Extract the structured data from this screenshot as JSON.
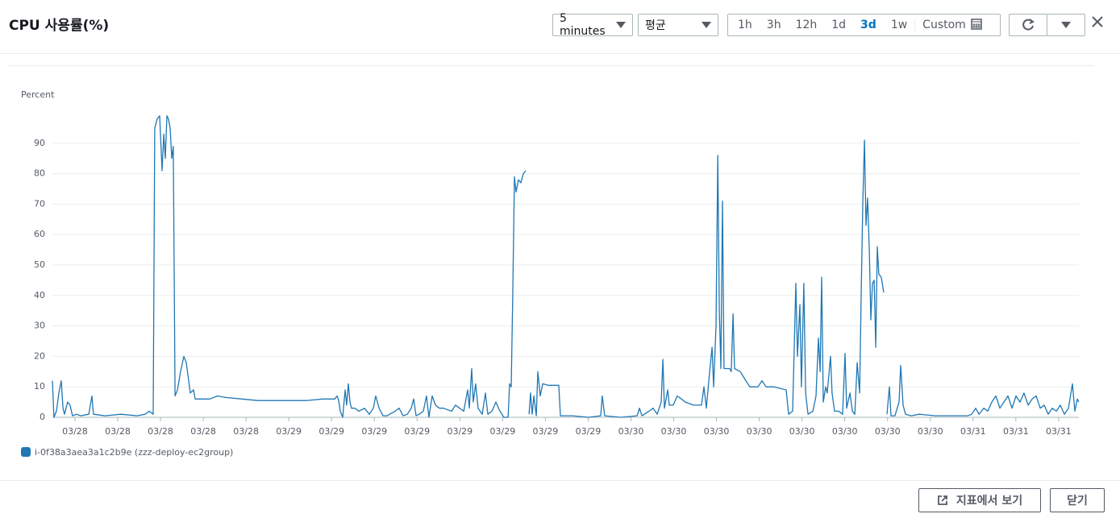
{
  "ui": {
    "title": "CPU 사용률(%)",
    "period": "5 minutes",
    "statistic": "평균",
    "ranges": [
      "1h",
      "3h",
      "12h",
      "1d",
      "3d",
      "1w",
      "Custom"
    ],
    "active_range": 4,
    "footer_buttons": [
      "지표에서 보기",
      "닫기"
    ]
  },
  "chart_data": {
    "type": "line",
    "ylabel": "Percent",
    "ylim": [
      0,
      100
    ],
    "yticks": [
      0,
      10,
      20,
      30,
      40,
      50,
      60,
      70,
      80,
      90
    ],
    "grid": true,
    "xlim": [
      0,
      72
    ],
    "xticks": [
      {
        "value": 1.58,
        "label": "03/28"
      },
      {
        "value": 4.58,
        "label": "03/28"
      },
      {
        "value": 7.58,
        "label": "03/28"
      },
      {
        "value": 10.58,
        "label": "03/28"
      },
      {
        "value": 13.58,
        "label": "03/28"
      },
      {
        "value": 16.58,
        "label": "03/29"
      },
      {
        "value": 19.58,
        "label": "03/29"
      },
      {
        "value": 22.58,
        "label": "03/29"
      },
      {
        "value": 25.58,
        "label": "03/29"
      },
      {
        "value": 28.58,
        "label": "03/29"
      },
      {
        "value": 31.58,
        "label": "03/29"
      },
      {
        "value": 34.58,
        "label": "03/29"
      },
      {
        "value": 37.58,
        "label": "03/29"
      },
      {
        "value": 40.58,
        "label": "03/30"
      },
      {
        "value": 43.58,
        "label": "03/30"
      },
      {
        "value": 46.58,
        "label": "03/30"
      },
      {
        "value": 49.58,
        "label": "03/30"
      },
      {
        "value": 52.58,
        "label": "03/30"
      },
      {
        "value": 55.58,
        "label": "03/30"
      },
      {
        "value": 58.58,
        "label": "03/30"
      },
      {
        "value": 61.58,
        "label": "03/30"
      },
      {
        "value": 64.58,
        "label": "03/31"
      },
      {
        "value": 67.58,
        "label": "03/31"
      },
      {
        "value": 70.58,
        "label": "03/31"
      }
    ],
    "x": [
      0,
      0.11,
      0.28,
      0.45,
      0.62,
      0.74,
      0.85,
      1.07,
      1.24,
      1.41,
      1.7,
      1.98,
      2.55,
      2.77,
      2.88,
      3.68,
      4.81,
      5.94,
      6.5,
      6.79,
      7.07,
      7.18,
      7.35,
      7.52,
      7.69,
      7.81,
      7.92,
      8.03,
      8.14,
      8.26,
      8.37,
      8.48,
      8.6,
      8.77,
      8.99,
      9.22,
      9.39,
      9.5,
      9.67,
      9.9,
      10.01,
      10.46,
      11.03,
      11.59,
      12.16,
      13.29,
      14.42,
      16.12,
      17.82,
      18.95,
      19.8,
      19.97,
      20.08,
      20.19,
      20.36,
      20.53,
      20.64,
      20.76,
      20.87,
      20.98,
      21.21,
      21.49,
      21.89,
      22.23,
      22.51,
      22.68,
      22.91,
      23.19,
      23.47,
      24.04,
      24.32,
      24.6,
      24.89,
      25.17,
      25.34,
      25.51,
      25.73,
      26.02,
      26.24,
      26.41,
      26.64,
      26.87,
      27.15,
      27.43,
      28.0,
      28.28,
      28.56,
      28.85,
      29.13,
      29.24,
      29.41,
      29.52,
      29.69,
      29.86,
      30.15,
      30.37,
      30.54,
      30.83,
      31.11,
      31.39,
      31.67,
      31.96,
      32.07,
      32.18,
      32.29,
      32.41,
      32.52,
      32.69,
      32.86,
      33.03,
      33.2,
      33.3,
      33.43,
      33.54,
      33.65,
      33.77,
      33.94,
      34.05,
      34.22,
      34.39,
      34.79,
      35.52,
      35.63,
      36.48,
      37.61,
      38.46,
      38.57,
      38.74,
      39.87,
      41.01,
      41.18,
      41.35,
      41.85,
      42.14,
      42.42,
      42.7,
      42.82,
      42.93,
      43.16,
      43.27,
      43.55,
      43.83,
      44.12,
      44.4,
      44.97,
      45.53,
      45.7,
      45.87,
      46.1,
      46.27,
      46.38,
      46.55,
      46.67,
      46.78,
      46.89,
      47.0,
      47.11,
      47.23,
      47.51,
      47.62,
      47.74,
      47.85,
      48.25,
      48.64,
      48.92,
      49.49,
      49.77,
      50.06,
      50.62,
      51.47,
      51.64,
      51.92,
      52.15,
      52.26,
      52.43,
      52.54,
      52.71,
      52.83,
      53.0,
      53.34,
      53.56,
      53.73,
      53.85,
      53.96,
      54.07,
      54.24,
      54.35,
      54.58,
      54.69,
      54.86,
      55.15,
      55.43,
      55.6,
      55.71,
      55.94,
      56.11,
      56.28,
      56.45,
      56.62,
      56.73,
      56.84,
      56.96,
      57.07,
      57.18,
      57.3,
      57.41,
      57.52,
      57.64,
      57.75,
      57.86,
      57.97,
      58.14,
      58.31,
      58.45,
      58.54,
      58.71,
      58.82,
      59.1,
      59.39,
      59.5,
      59.67,
      59.84,
      60.24,
      60.8,
      61.93,
      63.06,
      64.2,
      64.48,
      64.76,
      64.99,
      65.33,
      65.61,
      65.89,
      66.18,
      66.46,
      66.74,
      67.02,
      67.31,
      67.59,
      67.87,
      68.15,
      68.44,
      68.72,
      69.0,
      69.29,
      69.57,
      69.85,
      70.13,
      70.42,
      70.7,
      70.98,
      71.27,
      71.55,
      71.72,
      71.89,
      72.0
    ],
    "series": [
      {
        "name": "i-0f38a3aea3a1c2b9e (zzz-deploy-ec2group)",
        "color": "#1f77b4",
        "values": [
          12,
          0,
          2,
          8,
          12,
          3,
          1,
          5,
          4,
          0.5,
          1,
          0.5,
          1,
          7,
          1,
          0.5,
          1,
          0.5,
          1,
          2,
          1,
          95,
          98,
          99,
          81,
          93,
          85,
          99,
          98,
          95,
          85,
          89,
          7,
          9,
          15,
          20,
          18,
          14,
          8,
          9,
          6,
          6,
          6,
          7,
          6.5,
          6,
          5.5,
          5.5,
          5.5,
          6,
          6,
          7,
          5.5,
          2,
          0,
          9,
          4,
          11,
          5,
          3,
          3,
          2,
          3,
          1,
          3,
          7,
          3,
          0.5,
          0.5,
          2,
          3,
          0.5,
          1,
          3,
          6,
          0.5,
          1,
          2,
          7,
          0,
          7,
          4,
          3,
          3,
          2,
          4,
          3,
          2,
          9,
          3,
          16,
          5,
          11,
          3,
          1,
          8,
          1,
          2,
          5,
          2,
          0,
          0,
          11,
          10,
          40,
          79,
          74,
          78,
          77,
          80,
          81,
          null,
          1,
          8,
          1,
          7,
          0.5,
          15,
          7,
          11,
          10.5,
          10.5,
          0.5,
          0.5,
          0,
          0.5,
          7,
          0.5,
          0,
          0.5,
          3,
          0.5,
          2,
          3,
          1,
          5,
          19,
          3,
          9,
          4,
          4,
          7,
          6,
          5,
          4,
          4,
          10,
          3,
          15,
          23,
          10,
          30,
          86,
          35,
          16,
          71,
          16,
          16,
          16,
          15,
          34,
          16,
          15,
          12,
          10,
          10,
          12,
          10,
          10,
          9,
          1,
          2,
          44,
          20,
          37,
          10,
          44,
          8,
          1,
          2,
          7,
          26,
          15,
          46,
          5,
          10,
          8,
          20,
          8,
          2,
          2,
          1,
          21,
          3,
          8,
          2,
          1,
          18,
          8,
          40,
          70,
          91,
          63,
          72,
          55,
          32,
          44,
          45,
          23,
          56,
          47,
          46,
          41,
          null,
          1,
          10,
          0.5,
          0.5,
          5,
          17,
          4,
          1,
          0.5,
          1,
          0.5,
          0.5,
          0.5,
          1,
          3,
          1,
          3,
          2,
          5,
          7,
          3,
          5,
          7,
          3,
          7,
          5,
          8,
          4,
          6,
          7,
          3,
          4,
          1,
          3,
          2,
          4,
          1,
          3,
          11,
          2,
          6,
          5
        ]
      }
    ]
  }
}
